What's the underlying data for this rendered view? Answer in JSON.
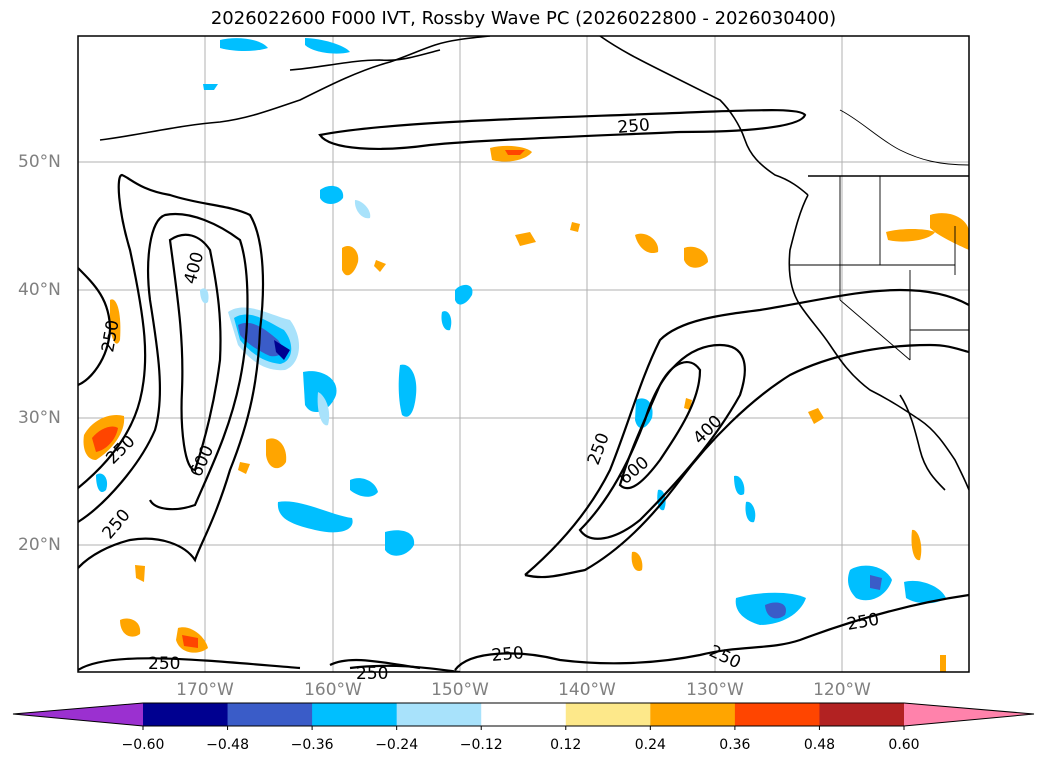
{
  "title": "2026022600 F000 IVT, Rossby Wave PC (2026022800 - 2026030400)",
  "lat_labels": [
    "50°N",
    "40°N",
    "30°N",
    "20°N"
  ],
  "lon_labels": [
    "170°W",
    "160°W",
    "150°W",
    "140°W",
    "130°W",
    "120°W"
  ],
  "contour_labels": {
    "c250_a": "250",
    "c400_a": "400",
    "c250_b": "250",
    "c250_c": "250",
    "c600_a": "600",
    "c250_d": "250",
    "c250_e": "250",
    "c250_f": "250",
    "c250_g": "250",
    "c600_b": "600",
    "c400_b": "400",
    "c250_h": "250",
    "c250_i": "250",
    "c250_j": "250",
    "c250_k": "250"
  },
  "colorbar": {
    "ticks": [
      "−0.60",
      "−0.48",
      "−0.36",
      "−0.24",
      "−0.12",
      "0.12",
      "0.24",
      "0.36",
      "0.48",
      "0.60"
    ],
    "colors": {
      "neg_extend": "#9b30d0",
      "neg060": "#000090",
      "neg048": "#3a5cc8",
      "neg036": "#00bfff",
      "neg024": "#a8e2fb",
      "neutral": "#ffffff",
      "pos012": "#fde88a",
      "pos024": "#ffa500",
      "pos036": "#ff4500",
      "pos048": "#b22222",
      "pos_extend": "#ff82ab"
    }
  }
}
